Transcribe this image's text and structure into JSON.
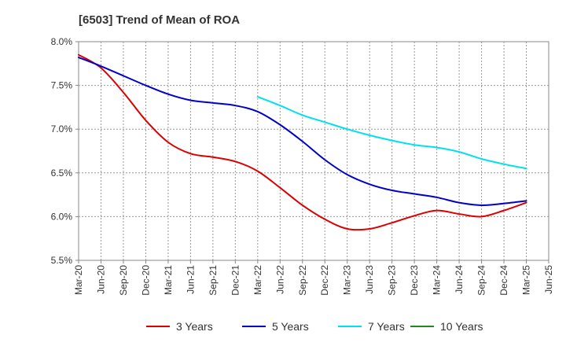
{
  "chart_data": {
    "type": "line",
    "title": "[6503]  Trend of Mean of ROA",
    "xlabel": "",
    "ylabel": "",
    "ylim": [
      5.5,
      8.0
    ],
    "y_ticks": [
      5.5,
      6.0,
      6.5,
      7.0,
      7.5,
      8.0
    ],
    "y_tick_labels": [
      "5.5%",
      "6.0%",
      "6.5%",
      "7.0%",
      "7.5%",
      "8.0%"
    ],
    "x_tick_labels": [
      "Mar-20",
      "Jun-20",
      "Sep-20",
      "Dec-20",
      "Mar-21",
      "Jun-21",
      "Sep-21",
      "Dec-21",
      "Mar-22",
      "Jun-22",
      "Sep-22",
      "Dec-22",
      "Mar-23",
      "Jun-23",
      "Sep-23",
      "Dec-23",
      "Mar-24",
      "Jun-24",
      "Sep-24",
      "Dec-24",
      "Mar-25",
      "Jun-25"
    ],
    "grid": true,
    "legend_position": "bottom",
    "series": [
      {
        "name": "3 Years",
        "color": "#dd0000",
        "values": [
          7.85,
          7.7,
          7.42,
          7.1,
          6.85,
          6.72,
          6.68,
          6.63,
          6.52,
          6.33,
          6.13,
          5.97,
          5.86,
          5.86,
          5.93,
          6.01,
          6.07,
          6.03,
          6.0,
          6.07,
          6.16
        ]
      },
      {
        "name": "5 Years",
        "color": "#0000cc",
        "values": [
          7.82,
          7.72,
          7.61,
          7.5,
          7.4,
          7.33,
          7.3,
          7.27,
          7.2,
          7.05,
          6.86,
          6.65,
          6.48,
          6.37,
          6.3,
          6.26,
          6.22,
          6.16,
          6.13,
          6.15,
          6.18
        ]
      },
      {
        "name": "7 Years",
        "color": "#00e0ee",
        "values": [
          null,
          null,
          null,
          null,
          null,
          null,
          null,
          null,
          7.37,
          7.27,
          7.16,
          7.08,
          7.0,
          6.93,
          6.87,
          6.82,
          6.79,
          6.74,
          6.66,
          6.6,
          6.55
        ]
      },
      {
        "name": "10 Years",
        "color": "#228822",
        "values": [
          null,
          null,
          null,
          null,
          null,
          null,
          null,
          null,
          null,
          null,
          null,
          null,
          null,
          null,
          null,
          null,
          null,
          null,
          null,
          null,
          null
        ]
      }
    ]
  }
}
